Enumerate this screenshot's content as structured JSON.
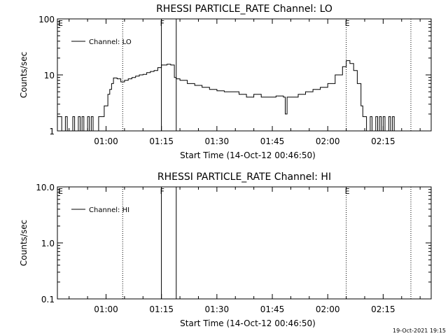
{
  "chart_data": [
    {
      "type": "line",
      "title": "RHESSI PARTICLE_RATE Channel: LO",
      "xlabel": "Start Time (14-Oct-12 00:46:50)",
      "ylabel": "Counts/sec",
      "yscale": "log",
      "ylim": [
        1,
        100
      ],
      "xlim": [
        "00:46:50",
        "02:28:00"
      ],
      "x_ticks": [
        "01:00",
        "01:15",
        "01:30",
        "01:45",
        "02:00",
        "02:15"
      ],
      "y_ticks": [
        "1",
        "10",
        "100"
      ],
      "grid": false,
      "legend": "top-left",
      "series": [
        {
          "name": "Channel: LO",
          "x": [
            "00:46:50",
            "00:48:00",
            "00:48:30",
            "00:49:00",
            "00:49:30",
            "00:50:00",
            "00:50:30",
            "00:51:00",
            "00:51:30",
            "00:52:00",
            "00:52:30",
            "00:53:00",
            "00:53:30",
            "00:54:00",
            "00:54:30",
            "00:55:00",
            "00:55:30",
            "00:56:00",
            "00:56:30",
            "00:57:00",
            "00:58:00",
            "00:59:00",
            "00:59:30",
            "01:00:00",
            "01:00:30",
            "01:01:00",
            "01:01:30",
            "01:02:00",
            "01:03:00",
            "01:04:00",
            "01:05:00",
            "01:06:00",
            "01:07:00",
            "01:08:00",
            "01:09:00",
            "01:10:00",
            "01:11:00",
            "01:12:00",
            "01:13:00",
            "01:14:00",
            "01:14:59",
            "01:15:30",
            "01:16:30",
            "01:17:30",
            "01:18:30",
            "01:19:00",
            "01:20:00",
            "01:22:00",
            "01:24:00",
            "01:26:00",
            "01:28:00",
            "01:30:00",
            "01:32:00",
            "01:34:00",
            "01:36:00",
            "01:38:00",
            "01:40:00",
            "01:42:00",
            "01:44:00",
            "01:46:00",
            "01:48:00",
            "01:48:30",
            "01:49:00",
            "01:50:00",
            "01:52:00",
            "01:54:00",
            "01:56:00",
            "01:58:00",
            "02:00:00",
            "02:02:00",
            "02:04:00",
            "02:05:00",
            "02:06:00",
            "02:07:00",
            "02:08:00",
            "02:09:00",
            "02:09:30",
            "02:10:00",
            "02:10:30",
            "02:11:00",
            "02:11:30",
            "02:12:00",
            "02:12:30",
            "02:13:00",
            "02:13:30",
            "02:14:00",
            "02:14:30",
            "02:15:00",
            "02:15:30",
            "02:16:00",
            "02:16:30",
            "02:17:00",
            "02:17:30",
            "02:18:00",
            "02:18:30",
            "02:19:00"
          ],
          "y": [
            1.8,
            1,
            1,
            1.8,
            1,
            1,
            1,
            1.8,
            1,
            1,
            1.8,
            1,
            1.8,
            1,
            1,
            1.8,
            1,
            1.8,
            1,
            1,
            1.8,
            1.8,
            2.8,
            2.8,
            4.5,
            5.5,
            7,
            8.8,
            8.5,
            7.5,
            8,
            8.5,
            9,
            9.5,
            10,
            10.2,
            11,
            11.5,
            12,
            13.5,
            15,
            15,
            15.5,
            15,
            9,
            8.5,
            8,
            7,
            6.5,
            6,
            5.5,
            5.2,
            5,
            5,
            4.5,
            4,
            4.5,
            4,
            4,
            4.2,
            4,
            2,
            4,
            4,
            4.5,
            5,
            5.5,
            6,
            7,
            10,
            14,
            18,
            16,
            12,
            7,
            2.8,
            1.8,
            1.8,
            1,
            1,
            1.8,
            1,
            1,
            1.8,
            1,
            1.8,
            1,
            1.8,
            1,
            1,
            1.8,
            1,
            1.8,
            1,
            1,
            1
          ]
        }
      ],
      "markers": [
        {
          "label": "E",
          "time": "00:46:50",
          "style": "letter"
        },
        {
          "label": "",
          "time": "01:04:30",
          "style": "dotted"
        },
        {
          "label": "F",
          "time": "01:14:59",
          "style": "solid"
        },
        {
          "label": "",
          "time": "01:19:00",
          "style": "solid"
        },
        {
          "label": "E",
          "time": "02:05:00",
          "style": "dotted"
        },
        {
          "label": "",
          "time": "02:22:30",
          "style": "dotted"
        }
      ]
    },
    {
      "type": "line",
      "title": "RHESSI PARTICLE_RATE Channel: HI",
      "xlabel": "Start Time (14-Oct-12 00:46:50)",
      "ylabel": "Counts/sec",
      "yscale": "log",
      "ylim": [
        0.1,
        10
      ],
      "xlim": [
        "00:46:50",
        "02:28:00"
      ],
      "x_ticks": [
        "01:00",
        "01:15",
        "01:30",
        "01:45",
        "02:00",
        "02:15"
      ],
      "y_ticks": [
        "0.1",
        "1.0",
        "10.0"
      ],
      "grid": false,
      "legend": "top-left",
      "series": [
        {
          "name": "Channel: HI",
          "x": [],
          "y": []
        }
      ],
      "markers": [
        {
          "label": "E",
          "time": "00:46:50",
          "style": "letter"
        },
        {
          "label": "",
          "time": "01:04:30",
          "style": "dotted"
        },
        {
          "label": "F",
          "time": "01:14:59",
          "style": "solid"
        },
        {
          "label": "",
          "time": "01:19:00",
          "style": "solid"
        },
        {
          "label": "E",
          "time": "02:05:00",
          "style": "dotted"
        },
        {
          "label": "",
          "time": "02:22:30",
          "style": "dotted"
        }
      ]
    }
  ],
  "footer": {
    "timestamp": "19-Oct-2021 19:15"
  }
}
